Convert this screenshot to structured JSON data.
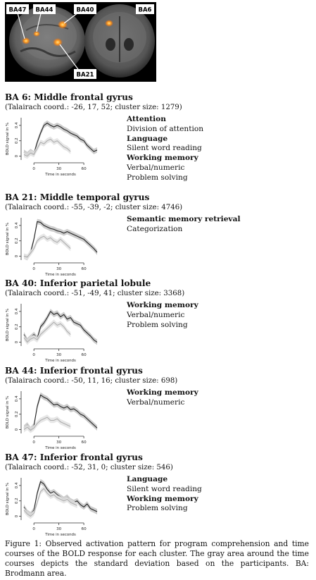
{
  "brain_panel": {
    "labels": [
      "BA47",
      "BA44",
      "BA40",
      "BA6",
      "BA21"
    ]
  },
  "sections": [
    {
      "title": "BA 6: Middle frontal gyrus",
      "subtitle": "(Talairach coord.: -26, 17, 52; cluster size: 1279)",
      "functions": [
        {
          "category": "Attention",
          "items": [
            "Division of attention"
          ]
        },
        {
          "category": "Language",
          "items": [
            "Silent word reading"
          ]
        },
        {
          "category": "Working memory",
          "items": [
            "Verbal/numeric",
            "Problem solving"
          ]
        }
      ]
    },
    {
      "title": "BA 21: Middle temporal gyrus",
      "subtitle": "(Talairach coord.: -55, -39, -2; cluster size: 4746)",
      "functions": [
        {
          "category": "Semantic memory retrieval",
          "items": [
            "Categorization"
          ]
        }
      ]
    },
    {
      "title": "BA 40: Inferior parietal lobule",
      "subtitle": "(Talairach coord.: -51, -49, 41; cluster size: 3368)",
      "functions": [
        {
          "category": "Working memory",
          "items": [
            "Verbal/numeric",
            "Problem solving"
          ]
        }
      ]
    },
    {
      "title": "BA 44: Inferior frontal gyrus",
      "subtitle": "(Talairach coord.: -50, 11, 16; cluster size: 698)",
      "functions": [
        {
          "category": "Working memory",
          "items": [
            "Verbal/numeric"
          ]
        }
      ]
    },
    {
      "title": "BA 47: Inferior frontal gyrus",
      "subtitle": "(Talairach coord.: -52, 31, 0; cluster size: 546)",
      "functions": [
        {
          "category": "Language",
          "items": [
            "Silent word reading"
          ]
        },
        {
          "category": "Working memory",
          "items": [
            "Problem solving"
          ]
        }
      ]
    }
  ],
  "chart_data": [
    {
      "type": "line",
      "ylabel": "BOLD signal in %",
      "xlabel": "Time in seconds",
      "xticks": [
        0,
        30,
        60
      ],
      "yticks": [
        "0",
        "0.2",
        "0.4"
      ],
      "xlim": [
        -12,
        76
      ],
      "ylim": [
        -0.05,
        0.5
      ],
      "series": [
        {
          "color": "#222222",
          "x": [
            -12,
            -8,
            -4,
            0,
            4,
            8,
            12,
            16,
            20,
            24,
            28,
            32,
            36,
            40,
            44,
            48,
            52,
            56,
            60,
            64,
            68,
            72,
            76
          ],
          "values": [
            0.05,
            0.02,
            0.06,
            0.03,
            0.18,
            0.3,
            0.4,
            0.43,
            0.4,
            0.38,
            0.4,
            0.38,
            0.35,
            0.33,
            0.3,
            0.28,
            0.26,
            0.22,
            0.2,
            0.14,
            0.1,
            0.06,
            0.08
          ]
        },
        {
          "color": "#aaaaaa",
          "x": [
            -12,
            -8,
            -4,
            0,
            4,
            8,
            12,
            16,
            20,
            24,
            28,
            32,
            36,
            40,
            44
          ],
          "values": [
            0.02,
            0.0,
            0.04,
            0.02,
            0.1,
            0.18,
            0.16,
            0.2,
            0.22,
            0.18,
            0.2,
            0.16,
            0.12,
            0.1,
            0.06
          ]
        }
      ]
    },
    {
      "type": "line",
      "ylabel": "BOLD signal in %",
      "xlabel": "Time in seconds",
      "xticks": [
        0,
        30,
        60
      ],
      "yticks": [
        "0",
        "0.2",
        "0.4"
      ],
      "xlim": [
        -12,
        76
      ],
      "ylim": [
        -0.05,
        0.5
      ],
      "series": [
        {
          "color": "#222222",
          "x": [
            -12,
            -8,
            -4,
            0,
            4,
            8,
            12,
            16,
            20,
            24,
            28,
            32,
            36,
            40,
            44,
            48,
            52,
            56,
            60,
            64,
            68,
            72,
            76
          ],
          "values": [
            0.0,
            -0.02,
            0.05,
            0.22,
            0.45,
            0.44,
            0.4,
            0.38,
            0.36,
            0.35,
            0.33,
            0.32,
            0.3,
            0.32,
            0.3,
            0.28,
            0.26,
            0.24,
            0.22,
            0.18,
            0.14,
            0.1,
            0.05
          ]
        },
        {
          "color": "#aaaaaa",
          "x": [
            -12,
            -8,
            -4,
            0,
            4,
            8,
            12,
            16,
            20,
            24,
            28,
            32,
            36,
            40,
            44
          ],
          "values": [
            0.0,
            -0.01,
            0.04,
            0.1,
            0.2,
            0.24,
            0.26,
            0.22,
            0.24,
            0.2,
            0.18,
            0.22,
            0.18,
            0.14,
            0.1
          ]
        }
      ]
    },
    {
      "type": "line",
      "ylabel": "BOLD signal in %",
      "xlabel": "Time in seconds",
      "xticks": [
        0,
        30,
        60
      ],
      "yticks": [
        "0",
        "0.2",
        "0.4"
      ],
      "xlim": [
        -12,
        76
      ],
      "ylim": [
        -0.05,
        0.5
      ],
      "series": [
        {
          "color": "#222222",
          "x": [
            -12,
            -8,
            -4,
            0,
            4,
            8,
            12,
            16,
            20,
            24,
            28,
            32,
            36,
            40,
            44,
            48,
            52,
            56,
            60,
            64,
            68,
            72,
            76
          ],
          "values": [
            0.1,
            0.02,
            0.06,
            0.1,
            0.05,
            0.2,
            0.25,
            0.32,
            0.4,
            0.36,
            0.38,
            0.33,
            0.36,
            0.3,
            0.32,
            0.26,
            0.24,
            0.22,
            0.16,
            0.12,
            0.08,
            0.03,
            0.0
          ]
        },
        {
          "color": "#aaaaaa",
          "x": [
            -12,
            -8,
            -4,
            0,
            4,
            8,
            12,
            16,
            20,
            24,
            28,
            32,
            36,
            40,
            44
          ],
          "values": [
            0.06,
            0.0,
            0.04,
            0.06,
            0.03,
            0.1,
            0.14,
            0.18,
            0.22,
            0.26,
            0.22,
            0.24,
            0.2,
            0.14,
            0.1
          ]
        }
      ]
    },
    {
      "type": "line",
      "ylabel": "BOLD signal in %",
      "xlabel": "Time in seconds",
      "xticks": [
        0,
        30,
        60
      ],
      "yticks": [
        "0",
        "0.2",
        "0.4"
      ],
      "xlim": [
        -12,
        76
      ],
      "ylim": [
        -0.05,
        0.5
      ],
      "series": [
        {
          "color": "#222222",
          "x": [
            -12,
            -8,
            -4,
            0,
            4,
            8,
            12,
            16,
            20,
            24,
            28,
            32,
            36,
            40,
            44,
            48,
            52,
            56,
            60,
            64,
            68,
            72,
            76
          ],
          "values": [
            0.02,
            0.06,
            0.0,
            0.05,
            0.3,
            0.45,
            0.42,
            0.4,
            0.36,
            0.32,
            0.33,
            0.3,
            0.28,
            0.3,
            0.26,
            0.27,
            0.24,
            0.2,
            0.18,
            0.14,
            0.1,
            0.06,
            0.02
          ]
        },
        {
          "color": "#aaaaaa",
          "x": [
            -12,
            -8,
            -4,
            0,
            4,
            8,
            12,
            16,
            20,
            24,
            28,
            32,
            36,
            40,
            44
          ],
          "values": [
            0.0,
            0.03,
            -0.01,
            0.02,
            0.08,
            0.12,
            0.14,
            0.16,
            0.12,
            0.12,
            0.14,
            0.1,
            0.08,
            0.06,
            0.04
          ]
        }
      ]
    },
    {
      "type": "line",
      "ylabel": "BOLD signal in %",
      "xlabel": "Time in seconds",
      "xticks": [
        0,
        30,
        60
      ],
      "yticks": [
        "0",
        "0.2",
        "0.4"
      ],
      "xlim": [
        -12,
        76
      ],
      "ylim": [
        -0.05,
        0.5
      ],
      "series": [
        {
          "color": "#222222",
          "x": [
            -12,
            -8,
            -4,
            0,
            4,
            8,
            12,
            16,
            20,
            24,
            28,
            32,
            36,
            40,
            44,
            48,
            52,
            56,
            60,
            64,
            68,
            72,
            76
          ],
          "values": [
            0.12,
            0.05,
            0.02,
            0.08,
            0.3,
            0.45,
            0.42,
            0.35,
            0.3,
            0.32,
            0.28,
            0.25,
            0.22,
            0.25,
            0.2,
            0.18,
            0.2,
            0.15,
            0.12,
            0.16,
            0.1,
            0.08,
            0.06
          ]
        },
        {
          "color": "#aaaaaa",
          "x": [
            -12,
            -8,
            -4,
            0,
            4,
            8,
            12,
            16,
            20,
            24,
            28,
            32,
            36,
            40,
            44,
            48,
            52
          ],
          "values": [
            0.08,
            0.03,
            0.0,
            0.04,
            0.18,
            0.32,
            0.36,
            0.3,
            0.26,
            0.28,
            0.24,
            0.22,
            0.2,
            0.22,
            0.18,
            0.16,
            0.14
          ]
        }
      ]
    }
  ],
  "caption": "Figure 1: Observed activation pattern for program comprehension and time courses of the BOLD response for each cluster. The gray area around the time courses depicts the standard deviation based on the participants. BA: Brodmann area."
}
